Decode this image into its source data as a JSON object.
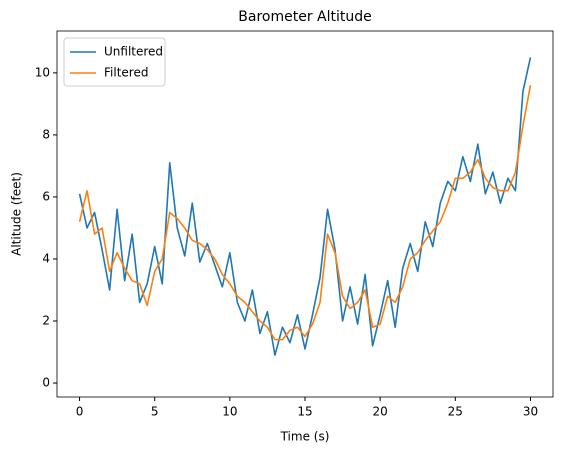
{
  "chart_data": {
    "type": "line",
    "title": "Barometer Altitude",
    "xlabel": "Time (s)",
    "ylabel": "Altitude (feet)",
    "x": [
      0,
      0.5,
      1,
      1.5,
      2,
      2.5,
      3,
      3.5,
      4,
      4.5,
      5,
      5.5,
      6,
      6.5,
      7,
      7.5,
      8,
      8.5,
      9,
      9.5,
      10,
      10.5,
      11,
      11.5,
      12,
      12.5,
      13,
      13.5,
      14,
      14.5,
      15,
      15.5,
      16,
      16.5,
      17,
      17.5,
      18,
      18.5,
      19,
      19.5,
      20,
      20.5,
      21,
      21.5,
      22,
      22.5,
      23,
      23.5,
      24,
      24.5,
      25,
      25.5,
      26,
      26.5,
      27,
      27.5,
      28,
      28.5,
      29,
      29.5,
      30
    ],
    "series": [
      {
        "name": "Unfiltered",
        "color": "#1f77b4",
        "values": [
          6.1,
          5.0,
          5.5,
          4.3,
          3.0,
          5.6,
          3.3,
          4.8,
          2.6,
          3.2,
          4.4,
          3.2,
          7.1,
          5.0,
          4.1,
          5.8,
          3.9,
          4.5,
          3.8,
          3.1,
          4.2,
          2.6,
          2.0,
          3.0,
          1.6,
          2.3,
          0.9,
          1.8,
          1.3,
          2.2,
          1.1,
          2.2,
          3.4,
          5.6,
          4.3,
          2.0,
          3.1,
          1.9,
          3.5,
          1.2,
          2.2,
          3.3,
          1.8,
          3.7,
          4.5,
          3.6,
          5.2,
          4.4,
          5.8,
          6.5,
          6.2,
          7.3,
          6.5,
          7.7,
          6.1,
          6.8,
          5.8,
          6.6,
          6.2,
          9.4,
          10.5
        ]
      },
      {
        "name": "Filtered",
        "color": "#ff7f0e",
        "values": [
          5.2,
          6.2,
          4.8,
          5.0,
          3.6,
          4.2,
          3.7,
          3.3,
          3.2,
          2.5,
          3.6,
          4.0,
          5.5,
          5.3,
          5.0,
          4.6,
          4.5,
          4.3,
          4.0,
          3.5,
          3.2,
          2.8,
          2.6,
          2.3,
          2.0,
          1.8,
          1.4,
          1.4,
          1.7,
          1.8,
          1.5,
          1.9,
          2.6,
          4.8,
          4.2,
          2.8,
          2.4,
          2.6,
          3.0,
          1.8,
          1.9,
          2.8,
          2.6,
          3.1,
          4.0,
          4.2,
          4.6,
          4.9,
          5.2,
          5.8,
          6.6,
          6.6,
          6.8,
          7.2,
          6.6,
          6.3,
          6.2,
          6.2,
          6.8,
          8.3,
          9.6
        ]
      }
    ],
    "xlim": [
      -1.5,
      31.5
    ],
    "ylim": [
      -0.45,
      11.35
    ],
    "xticks": [
      0,
      5,
      10,
      15,
      20,
      25,
      30
    ],
    "yticks": [
      0,
      2,
      4,
      6,
      8,
      10
    ],
    "legend": "upper left"
  }
}
